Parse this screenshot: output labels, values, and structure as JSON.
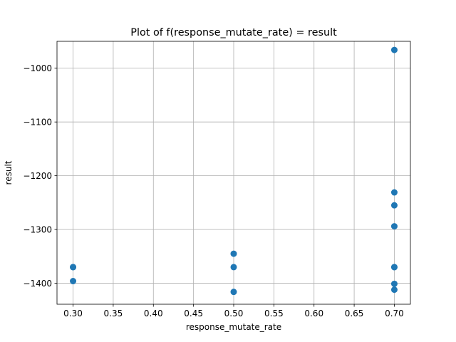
{
  "chart_data": {
    "type": "scatter",
    "title": "Plot of f(response_mutate_rate) = result",
    "xlabel": "response_mutate_rate",
    "ylabel": "result",
    "xlim": [
      0.28,
      0.72
    ],
    "ylim": [
      -1439,
      -950
    ],
    "grid": true,
    "marker_color": "#1f77b4",
    "x_ticks": [
      0.3,
      0.35,
      0.4,
      0.45,
      0.5,
      0.55,
      0.6,
      0.65,
      0.7
    ],
    "x_tick_labels": [
      "0.30",
      "0.35",
      "0.40",
      "0.45",
      "0.50",
      "0.55",
      "0.60",
      "0.65",
      "0.70"
    ],
    "y_ticks": [
      -1400,
      -1300,
      -1200,
      -1100,
      -1000
    ],
    "y_tick_labels": [
      "−1400",
      "−1300",
      "−1200",
      "−1100",
      "−1000"
    ],
    "points": [
      {
        "x": 0.3,
        "y": -1370
      },
      {
        "x": 0.3,
        "y": -1370
      },
      {
        "x": 0.3,
        "y": -1396
      },
      {
        "x": 0.5,
        "y": -1345
      },
      {
        "x": 0.5,
        "y": -1370
      },
      {
        "x": 0.5,
        "y": -1416
      },
      {
        "x": 0.7,
        "y": -966
      },
      {
        "x": 0.7,
        "y": -1231
      },
      {
        "x": 0.7,
        "y": -1255
      },
      {
        "x": 0.7,
        "y": -1294
      },
      {
        "x": 0.7,
        "y": -1370
      },
      {
        "x": 0.7,
        "y": -1370
      },
      {
        "x": 0.7,
        "y": -1401
      },
      {
        "x": 0.7,
        "y": -1412
      }
    ]
  }
}
